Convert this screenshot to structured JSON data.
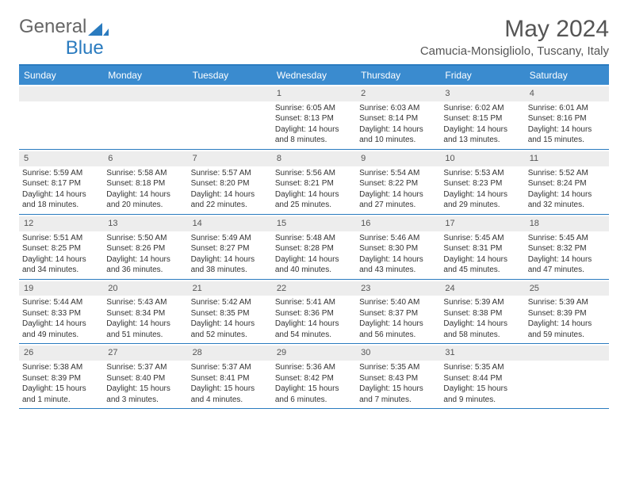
{
  "brand": {
    "part1": "General",
    "part2": "Blue"
  },
  "title": "May 2024",
  "location": "Camucia-Monsigliolo, Tuscany, Italy",
  "colors": {
    "header_bg": "#3a8bcf",
    "header_text": "#ffffff",
    "rule": "#2a7bbf",
    "daynum_bg": "#ededed",
    "text": "#333333",
    "brand_gray": "#666666",
    "brand_blue": "#2a7bbf",
    "page_bg": "#ffffff"
  },
  "day_headers": [
    "Sunday",
    "Monday",
    "Tuesday",
    "Wednesday",
    "Thursday",
    "Friday",
    "Saturday"
  ],
  "weeks": [
    [
      null,
      null,
      null,
      {
        "n": "1",
        "sunrise": "6:05 AM",
        "sunset": "8:13 PM",
        "daylight": "14 hours and 8 minutes."
      },
      {
        "n": "2",
        "sunrise": "6:03 AM",
        "sunset": "8:14 PM",
        "daylight": "14 hours and 10 minutes."
      },
      {
        "n": "3",
        "sunrise": "6:02 AM",
        "sunset": "8:15 PM",
        "daylight": "14 hours and 13 minutes."
      },
      {
        "n": "4",
        "sunrise": "6:01 AM",
        "sunset": "8:16 PM",
        "daylight": "14 hours and 15 minutes."
      }
    ],
    [
      {
        "n": "5",
        "sunrise": "5:59 AM",
        "sunset": "8:17 PM",
        "daylight": "14 hours and 18 minutes."
      },
      {
        "n": "6",
        "sunrise": "5:58 AM",
        "sunset": "8:18 PM",
        "daylight": "14 hours and 20 minutes."
      },
      {
        "n": "7",
        "sunrise": "5:57 AM",
        "sunset": "8:20 PM",
        "daylight": "14 hours and 22 minutes."
      },
      {
        "n": "8",
        "sunrise": "5:56 AM",
        "sunset": "8:21 PM",
        "daylight": "14 hours and 25 minutes."
      },
      {
        "n": "9",
        "sunrise": "5:54 AM",
        "sunset": "8:22 PM",
        "daylight": "14 hours and 27 minutes."
      },
      {
        "n": "10",
        "sunrise": "5:53 AM",
        "sunset": "8:23 PM",
        "daylight": "14 hours and 29 minutes."
      },
      {
        "n": "11",
        "sunrise": "5:52 AM",
        "sunset": "8:24 PM",
        "daylight": "14 hours and 32 minutes."
      }
    ],
    [
      {
        "n": "12",
        "sunrise": "5:51 AM",
        "sunset": "8:25 PM",
        "daylight": "14 hours and 34 minutes."
      },
      {
        "n": "13",
        "sunrise": "5:50 AM",
        "sunset": "8:26 PM",
        "daylight": "14 hours and 36 minutes."
      },
      {
        "n": "14",
        "sunrise": "5:49 AM",
        "sunset": "8:27 PM",
        "daylight": "14 hours and 38 minutes."
      },
      {
        "n": "15",
        "sunrise": "5:48 AM",
        "sunset": "8:28 PM",
        "daylight": "14 hours and 40 minutes."
      },
      {
        "n": "16",
        "sunrise": "5:46 AM",
        "sunset": "8:30 PM",
        "daylight": "14 hours and 43 minutes."
      },
      {
        "n": "17",
        "sunrise": "5:45 AM",
        "sunset": "8:31 PM",
        "daylight": "14 hours and 45 minutes."
      },
      {
        "n": "18",
        "sunrise": "5:45 AM",
        "sunset": "8:32 PM",
        "daylight": "14 hours and 47 minutes."
      }
    ],
    [
      {
        "n": "19",
        "sunrise": "5:44 AM",
        "sunset": "8:33 PM",
        "daylight": "14 hours and 49 minutes."
      },
      {
        "n": "20",
        "sunrise": "5:43 AM",
        "sunset": "8:34 PM",
        "daylight": "14 hours and 51 minutes."
      },
      {
        "n": "21",
        "sunrise": "5:42 AM",
        "sunset": "8:35 PM",
        "daylight": "14 hours and 52 minutes."
      },
      {
        "n": "22",
        "sunrise": "5:41 AM",
        "sunset": "8:36 PM",
        "daylight": "14 hours and 54 minutes."
      },
      {
        "n": "23",
        "sunrise": "5:40 AM",
        "sunset": "8:37 PM",
        "daylight": "14 hours and 56 minutes."
      },
      {
        "n": "24",
        "sunrise": "5:39 AM",
        "sunset": "8:38 PM",
        "daylight": "14 hours and 58 minutes."
      },
      {
        "n": "25",
        "sunrise": "5:39 AM",
        "sunset": "8:39 PM",
        "daylight": "14 hours and 59 minutes."
      }
    ],
    [
      {
        "n": "26",
        "sunrise": "5:38 AM",
        "sunset": "8:39 PM",
        "daylight": "15 hours and 1 minute."
      },
      {
        "n": "27",
        "sunrise": "5:37 AM",
        "sunset": "8:40 PM",
        "daylight": "15 hours and 3 minutes."
      },
      {
        "n": "28",
        "sunrise": "5:37 AM",
        "sunset": "8:41 PM",
        "daylight": "15 hours and 4 minutes."
      },
      {
        "n": "29",
        "sunrise": "5:36 AM",
        "sunset": "8:42 PM",
        "daylight": "15 hours and 6 minutes."
      },
      {
        "n": "30",
        "sunrise": "5:35 AM",
        "sunset": "8:43 PM",
        "daylight": "15 hours and 7 minutes."
      },
      {
        "n": "31",
        "sunrise": "5:35 AM",
        "sunset": "8:44 PM",
        "daylight": "15 hours and 9 minutes."
      },
      null
    ]
  ],
  "labels": {
    "sunrise": "Sunrise: ",
    "sunset": "Sunset: ",
    "daylight": "Daylight: "
  }
}
